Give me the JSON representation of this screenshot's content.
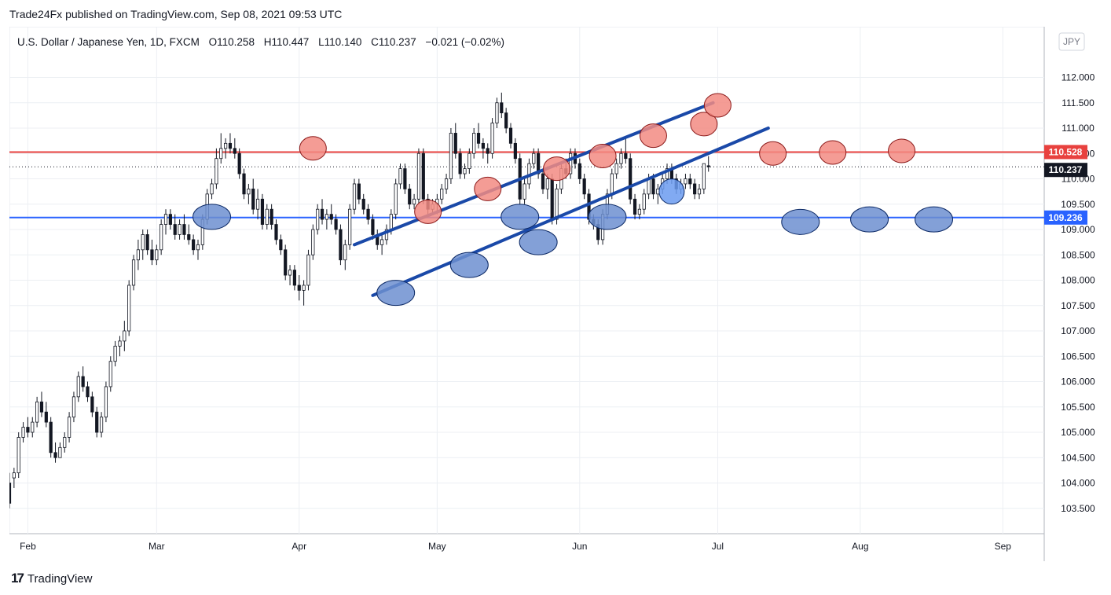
{
  "header": {
    "published": "Trade24Fx published on TradingView.com, Sep 08, 2021 09:53 UTC"
  },
  "footer": {
    "brand": "TradingView",
    "logo_glyph": "17"
  },
  "legend": {
    "symbol": "U.S. Dollar / Japanese Yen, 1D, FXCM",
    "open_label": "O",
    "open": "110.258",
    "high_label": "H",
    "high": "110.447",
    "low_label": "L",
    "low": "110.140",
    "close_label": "C",
    "close": "110.237",
    "change": "−0.021 (−0.02%)"
  },
  "currency_badge": "JPY",
  "colors": {
    "resistance": "#e8413e",
    "support": "#2962ff",
    "channel": "#1a49a8",
    "price_badge": "#131722",
    "top_marker": "#f28b82",
    "bottom_marker": "#6d8fd0",
    "bottom_marker_bright": "#6b9bf0",
    "grid": "#eceff3"
  },
  "chart_data": {
    "type": "candlestick",
    "title": "U.S. Dollar / Japanese Yen, 1D, FXCM",
    "ylim": [
      103.0,
      113.0
    ],
    "y_ticks": [
      "103.500",
      "104.000",
      "104.500",
      "105.000",
      "105.500",
      "106.000",
      "106.500",
      "107.000",
      "107.500",
      "108.000",
      "108.500",
      "109.000",
      "109.500",
      "110.000",
      "110.500",
      "111.000",
      "111.500",
      "112.000"
    ],
    "x_ticks": [
      {
        "label": "Feb",
        "day": 13
      },
      {
        "label": "Mar",
        "day": 41
      },
      {
        "label": "Apr",
        "day": 72
      },
      {
        "label": "May",
        "day": 102
      },
      {
        "label": "Jun",
        "day": 133
      },
      {
        "label": "Jul",
        "day": 163
      },
      {
        "label": "Aug",
        "day": 194
      },
      {
        "label": "Sep",
        "day": 225
      }
    ],
    "x_range": [
      9,
      234
    ],
    "resistance_level": {
      "value": 110.528,
      "label": "110.528"
    },
    "support_level": {
      "value": 109.236,
      "label": "109.236"
    },
    "last_price": {
      "value": 110.237,
      "label": "110.237"
    },
    "channel_lines": [
      {
        "name": "upper",
        "from": {
          "day": 84,
          "price": 108.7
        },
        "to": {
          "day": 162,
          "price": 111.5
        }
      },
      {
        "name": "lower",
        "from": {
          "day": 88,
          "price": 107.7
        },
        "to": {
          "day": 174,
          "price": 111.0
        }
      }
    ],
    "top_markers": [
      {
        "day": 75,
        "price": 110.6
      },
      {
        "day": 100,
        "price": 109.35
      },
      {
        "day": 113,
        "price": 109.8
      },
      {
        "day": 128,
        "price": 110.2
      },
      {
        "day": 138,
        "price": 110.45
      },
      {
        "day": 149,
        "price": 110.85
      },
      {
        "day": 160,
        "price": 111.08
      },
      {
        "day": 163,
        "price": 111.45
      },
      {
        "day": 175,
        "price": 110.5
      },
      {
        "day": 188,
        "price": 110.52
      },
      {
        "day": 203,
        "price": 110.55
      }
    ],
    "bottom_markers": [
      {
        "day": 53,
        "price": 109.25
      },
      {
        "day": 93,
        "price": 107.75
      },
      {
        "day": 109,
        "price": 108.3
      },
      {
        "day": 120,
        "price": 109.25
      },
      {
        "day": 124,
        "price": 108.75
      },
      {
        "day": 139,
        "price": 109.25
      },
      {
        "day": 153,
        "price": 109.75,
        "bright": true
      },
      {
        "day": 181,
        "price": 109.15
      },
      {
        "day": 196,
        "price": 109.2
      },
      {
        "day": 210,
        "price": 109.2
      }
    ],
    "candles": [
      [
        104.0,
        104.2,
        103.5,
        103.6
      ],
      [
        104.1,
        104.3,
        103.9,
        104.2
      ],
      [
        104.2,
        105.0,
        104.1,
        104.9
      ],
      [
        104.9,
        105.2,
        104.8,
        105.1
      ],
      [
        105.1,
        105.3,
        104.9,
        105.0
      ],
      [
        105.0,
        105.3,
        104.9,
        105.2
      ],
      [
        105.2,
        105.7,
        105.1,
        105.6
      ],
      [
        105.6,
        105.8,
        105.3,
        105.4
      ],
      [
        105.4,
        105.6,
        105.1,
        105.2
      ],
      [
        105.2,
        105.3,
        104.5,
        104.6
      ],
      [
        104.6,
        104.8,
        104.4,
        104.5
      ],
      [
        104.5,
        104.8,
        104.5,
        104.7
      ],
      [
        104.7,
        105.0,
        104.6,
        104.9
      ],
      [
        104.9,
        105.4,
        104.8,
        105.3
      ],
      [
        105.3,
        105.8,
        105.2,
        105.7
      ],
      [
        105.7,
        106.2,
        105.6,
        106.1
      ],
      [
        106.1,
        106.3,
        105.8,
        105.9
      ],
      [
        105.9,
        106.0,
        105.6,
        105.7
      ],
      [
        105.7,
        105.8,
        105.3,
        105.4
      ],
      [
        105.4,
        105.5,
        104.9,
        105.0
      ],
      [
        105.0,
        105.4,
        104.9,
        105.3
      ],
      [
        105.3,
        106.0,
        105.2,
        105.9
      ],
      [
        105.9,
        106.5,
        105.8,
        106.4
      ],
      [
        106.4,
        106.8,
        106.3,
        106.7
      ],
      [
        106.7,
        106.9,
        106.5,
        106.8
      ],
      [
        106.8,
        107.2,
        106.6,
        107.0
      ],
      [
        107.0,
        108.0,
        106.9,
        107.9
      ],
      [
        107.9,
        108.5,
        107.8,
        108.4
      ],
      [
        108.4,
        108.8,
        108.2,
        108.6
      ],
      [
        108.6,
        109.0,
        108.4,
        108.9
      ],
      [
        108.9,
        109.0,
        108.5,
        108.6
      ],
      [
        108.6,
        108.8,
        108.3,
        108.4
      ],
      [
        108.4,
        108.7,
        108.3,
        108.6
      ],
      [
        108.6,
        109.2,
        108.5,
        109.1
      ],
      [
        109.1,
        109.4,
        108.9,
        109.3
      ],
      [
        109.3,
        109.4,
        109.0,
        109.1
      ],
      [
        109.1,
        109.3,
        108.8,
        108.9
      ],
      [
        108.9,
        109.2,
        108.8,
        109.1
      ],
      [
        109.1,
        109.3,
        108.8,
        108.9
      ],
      [
        108.9,
        109.1,
        108.7,
        108.8
      ],
      [
        108.8,
        108.9,
        108.5,
        108.6
      ],
      [
        108.6,
        108.8,
        108.4,
        108.7
      ],
      [
        108.7,
        109.3,
        108.6,
        109.2
      ],
      [
        109.2,
        109.8,
        109.1,
        109.7
      ],
      [
        109.7,
        110.0,
        109.6,
        109.9
      ],
      [
        109.9,
        110.6,
        109.8,
        110.4
      ],
      [
        110.4,
        110.9,
        110.3,
        110.6
      ],
      [
        110.6,
        110.8,
        110.4,
        110.7
      ],
      [
        110.7,
        110.9,
        110.5,
        110.6
      ],
      [
        110.6,
        110.8,
        110.4,
        110.5
      ],
      [
        110.5,
        110.6,
        110.0,
        110.1
      ],
      [
        110.1,
        110.2,
        109.6,
        109.7
      ],
      [
        109.7,
        109.9,
        109.5,
        109.8
      ],
      [
        109.8,
        110.0,
        109.3,
        109.4
      ],
      [
        109.4,
        109.8,
        109.2,
        109.6
      ],
      [
        109.6,
        109.7,
        109.0,
        109.1
      ],
      [
        109.1,
        109.5,
        109.0,
        109.4
      ],
      [
        109.4,
        109.5,
        109.0,
        109.1
      ],
      [
        109.1,
        109.2,
        108.7,
        108.8
      ],
      [
        108.8,
        108.9,
        108.5,
        108.6
      ],
      [
        108.6,
        108.7,
        108.0,
        108.1
      ],
      [
        108.1,
        108.3,
        107.9,
        108.2
      ],
      [
        108.2,
        108.3,
        107.8,
        107.9
      ],
      [
        107.9,
        108.1,
        107.6,
        107.8
      ],
      [
        107.8,
        108.0,
        107.5,
        107.9
      ],
      [
        107.9,
        108.6,
        107.8,
        108.5
      ],
      [
        108.5,
        109.1,
        108.4,
        109.0
      ],
      [
        109.0,
        109.5,
        108.9,
        109.4
      ],
      [
        109.4,
        109.6,
        109.1,
        109.2
      ],
      [
        109.2,
        109.4,
        109.0,
        109.3
      ],
      [
        109.3,
        109.5,
        109.1,
        109.2
      ],
      [
        109.2,
        109.3,
        108.9,
        109.0
      ],
      [
        109.0,
        109.1,
        108.3,
        108.4
      ],
      [
        108.4,
        108.8,
        108.2,
        108.7
      ],
      [
        108.7,
        109.5,
        108.6,
        109.4
      ],
      [
        109.4,
        110.0,
        109.3,
        109.9
      ],
      [
        109.9,
        110.0,
        109.5,
        109.6
      ],
      [
        109.6,
        109.7,
        109.3,
        109.4
      ],
      [
        109.4,
        109.5,
        109.1,
        109.2
      ],
      [
        109.2,
        109.3,
        108.8,
        108.9
      ],
      [
        108.9,
        109.0,
        108.6,
        108.7
      ],
      [
        108.7,
        108.9,
        108.5,
        108.8
      ],
      [
        108.8,
        109.1,
        108.7,
        109.0
      ],
      [
        109.0,
        109.4,
        108.9,
        109.3
      ],
      [
        109.3,
        110.0,
        109.2,
        109.9
      ],
      [
        109.9,
        110.3,
        109.8,
        110.2
      ],
      [
        110.2,
        110.3,
        109.7,
        109.8
      ],
      [
        109.8,
        109.9,
        109.4,
        109.5
      ],
      [
        109.5,
        109.7,
        109.4,
        109.6
      ],
      [
        109.6,
        110.6,
        109.5,
        110.5
      ],
      [
        110.5,
        110.6,
        109.5,
        109.6
      ],
      [
        109.6,
        109.7,
        109.3,
        109.4
      ],
      [
        109.4,
        109.6,
        109.3,
        109.5
      ],
      [
        109.5,
        109.7,
        109.3,
        109.6
      ],
      [
        109.6,
        109.9,
        109.5,
        109.8
      ],
      [
        109.8,
        110.1,
        109.7,
        110.0
      ],
      [
        110.0,
        111.0,
        109.9,
        110.9
      ],
      [
        110.9,
        111.1,
        110.4,
        110.5
      ],
      [
        110.5,
        110.6,
        110.0,
        110.1
      ],
      [
        110.1,
        110.3,
        110.0,
        110.2
      ],
      [
        110.2,
        110.6,
        110.1,
        110.5
      ],
      [
        110.5,
        111.0,
        110.4,
        110.9
      ],
      [
        110.9,
        111.1,
        110.6,
        110.7
      ],
      [
        110.7,
        110.8,
        110.4,
        110.6
      ],
      [
        110.6,
        110.7,
        110.3,
        110.5
      ],
      [
        110.5,
        111.2,
        110.4,
        111.1
      ],
      [
        111.1,
        111.6,
        111.0,
        111.5
      ],
      [
        111.5,
        111.7,
        111.2,
        111.3
      ],
      [
        111.3,
        111.4,
        110.9,
        111.0
      ],
      [
        111.0,
        111.1,
        110.6,
        110.7
      ],
      [
        110.7,
        110.8,
        110.3,
        110.4
      ],
      [
        110.4,
        110.5,
        109.5,
        109.6
      ],
      [
        109.6,
        110.0,
        109.5,
        109.9
      ],
      [
        109.9,
        110.4,
        109.8,
        110.3
      ],
      [
        110.3,
        110.6,
        110.2,
        110.5
      ],
      [
        110.5,
        110.6,
        110.0,
        110.1
      ],
      [
        110.1,
        110.2,
        109.7,
        109.8
      ],
      [
        109.8,
        110.1,
        109.6,
        110.0
      ],
      [
        110.0,
        110.1,
        109.1,
        109.2
      ],
      [
        109.2,
        109.9,
        109.1,
        109.8
      ],
      [
        109.8,
        110.3,
        109.7,
        110.2
      ],
      [
        110.2,
        110.4,
        110.0,
        110.1
      ],
      [
        110.1,
        110.6,
        110.0,
        110.5
      ],
      [
        110.5,
        110.6,
        110.2,
        110.3
      ],
      [
        110.3,
        110.4,
        109.9,
        110.0
      ],
      [
        110.0,
        110.1,
        109.6,
        109.7
      ],
      [
        109.7,
        109.8,
        109.1,
        109.2
      ],
      [
        109.2,
        109.3,
        109.0,
        109.1
      ],
      [
        109.1,
        109.2,
        108.7,
        108.8
      ],
      [
        108.8,
        109.4,
        108.7,
        109.3
      ],
      [
        109.3,
        109.8,
        109.2,
        109.7
      ],
      [
        109.7,
        110.2,
        109.6,
        110.1
      ],
      [
        110.1,
        110.4,
        110.0,
        110.3
      ],
      [
        110.3,
        110.6,
        110.2,
        110.5
      ],
      [
        110.5,
        110.8,
        110.3,
        110.4
      ],
      [
        110.4,
        110.5,
        109.5,
        109.6
      ],
      [
        109.6,
        109.7,
        109.2,
        109.3
      ],
      [
        109.3,
        109.5,
        109.2,
        109.4
      ],
      [
        109.4,
        109.8,
        109.3,
        109.7
      ],
      [
        109.7,
        110.1,
        109.6,
        110.0
      ],
      [
        110.0,
        110.1,
        109.6,
        109.7
      ],
      [
        109.7,
        109.9,
        109.5,
        109.8
      ],
      [
        109.8,
        110.1,
        109.7,
        110.0
      ],
      [
        110.0,
        110.3,
        109.9,
        110.2
      ],
      [
        110.2,
        110.3,
        109.9,
        110.0
      ],
      [
        110.0,
        110.1,
        109.7,
        109.8
      ],
      [
        109.8,
        110.0,
        109.7,
        109.9
      ],
      [
        109.9,
        110.1,
        109.8,
        110.0
      ],
      [
        110.0,
        110.1,
        109.8,
        109.9
      ],
      [
        109.9,
        110.0,
        109.6,
        109.7
      ],
      [
        109.7,
        109.9,
        109.6,
        109.8
      ],
      [
        109.8,
        110.3,
        109.7,
        110.3
      ],
      [
        110.258,
        110.447,
        110.14,
        110.237
      ]
    ]
  }
}
